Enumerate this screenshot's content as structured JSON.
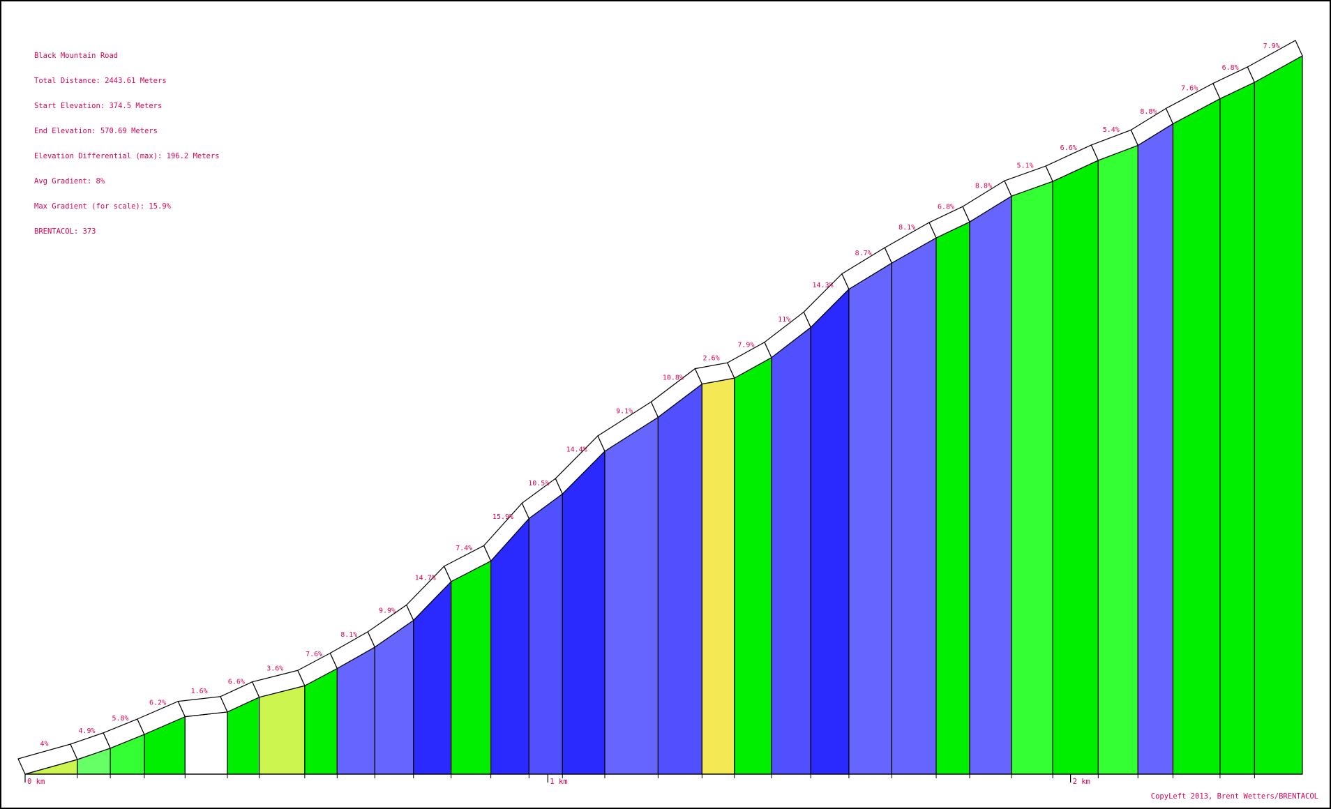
{
  "info": {
    "title": "Black Mountain Road",
    "total_distance": "Total Distance: 2443.61 Meters",
    "start_elevation": "Start Elevation: 374.5 Meters",
    "end_elevation": "End Elevation: 570.69 Meters",
    "elevation_diff": "Elevation Differential (max): 196.2 Meters",
    "avg_gradient": "Avg Gradient: 8%",
    "max_gradient": "Max Gradient (for scale): 15.9%",
    "brentacol": "BRENTACOL: 373"
  },
  "credit": "CopyLeft 2013, Brent Wetters/BRENTACOL",
  "colors": {
    "label": "#e00055",
    "outline": "#000000"
  },
  "chart_data": {
    "type": "area",
    "title": "Black Mountain Road",
    "xlabel": "",
    "ylabel": "",
    "x_unit": "km",
    "xlim": [
      0,
      2.4436
    ],
    "ylim": [
      374.5,
      570.69
    ],
    "x_tick_labels": [
      {
        "value": 0,
        "label": "0 km"
      },
      {
        "value": 1,
        "label": "1 km"
      },
      {
        "value": 2,
        "label": "2 km"
      }
    ],
    "segments": [
      {
        "x0": 0.0,
        "x1": 0.1,
        "gradient_label": "4%",
        "grade": 4.0,
        "color": "#ccf550"
      },
      {
        "x0": 0.1,
        "x1": 0.163,
        "gradient_label": "4.9%",
        "grade": 4.9,
        "color": "#66ff66"
      },
      {
        "x0": 0.163,
        "x1": 0.228,
        "gradient_label": "5.8%",
        "grade": 5.8,
        "color": "#33ff33"
      },
      {
        "x0": 0.228,
        "x1": 0.306,
        "gradient_label": "6.2%",
        "grade": 6.2,
        "color": "#00ee00"
      },
      {
        "x0": 0.306,
        "x1": 0.387,
        "gradient_label": "1.6%",
        "grade": 1.6,
        "color": "#ffffff"
      },
      {
        "x0": 0.387,
        "x1": 0.448,
        "gradient_label": "6.6%",
        "grade": 6.6,
        "color": "#00ee00"
      },
      {
        "x0": 0.448,
        "x1": 0.535,
        "gradient_label": "3.6%",
        "grade": 3.6,
        "color": "#ccf550"
      },
      {
        "x0": 0.535,
        "x1": 0.597,
        "gradient_label": "7.6%",
        "grade": 7.6,
        "color": "#00ee00"
      },
      {
        "x0": 0.597,
        "x1": 0.669,
        "gradient_label": "8.1%",
        "grade": 8.1,
        "color": "#6666ff"
      },
      {
        "x0": 0.669,
        "x1": 0.743,
        "gradient_label": "9.9%",
        "grade": 9.9,
        "color": "#6666ff"
      },
      {
        "x0": 0.743,
        "x1": 0.815,
        "gradient_label": "14.7%",
        "grade": 14.7,
        "color": "#2a2aff"
      },
      {
        "x0": 0.815,
        "x1": 0.891,
        "gradient_label": "7.4%",
        "grade": 7.4,
        "color": "#00ee00"
      },
      {
        "x0": 0.891,
        "x1": 0.964,
        "gradient_label": "15.9%",
        "grade": 15.9,
        "color": "#2a2aff"
      },
      {
        "x0": 0.964,
        "x1": 1.028,
        "gradient_label": "10.5%",
        "grade": 10.5,
        "color": "#5050ff"
      },
      {
        "x0": 1.028,
        "x1": 1.109,
        "gradient_label": "14.4%",
        "grade": 14.4,
        "color": "#2a2aff"
      },
      {
        "x0": 1.109,
        "x1": 1.211,
        "gradient_label": "9.1%",
        "grade": 9.1,
        "color": "#6666ff"
      },
      {
        "x0": 1.211,
        "x1": 1.295,
        "gradient_label": "10.8%",
        "grade": 10.8,
        "color": "#5050ff"
      },
      {
        "x0": 1.295,
        "x1": 1.357,
        "gradient_label": "2.6%",
        "grade": 2.6,
        "color": "#f5e855"
      },
      {
        "x0": 1.357,
        "x1": 1.428,
        "gradient_label": "7.9%",
        "grade": 7.9,
        "color": "#00ee00"
      },
      {
        "x0": 1.428,
        "x1": 1.503,
        "gradient_label": "11%",
        "grade": 11.0,
        "color": "#5050ff"
      },
      {
        "x0": 1.503,
        "x1": 1.576,
        "gradient_label": "14.3%",
        "grade": 14.3,
        "color": "#2a2aff"
      },
      {
        "x0": 1.576,
        "x1": 1.658,
        "gradient_label": "8.7%",
        "grade": 8.7,
        "color": "#6666ff"
      },
      {
        "x0": 1.658,
        "x1": 1.743,
        "gradient_label": "8.1%",
        "grade": 8.1,
        "color": "#6666ff"
      },
      {
        "x0": 1.743,
        "x1": 1.807,
        "gradient_label": "6.8%",
        "grade": 6.8,
        "color": "#00ee00"
      },
      {
        "x0": 1.807,
        "x1": 1.887,
        "gradient_label": "8.8%",
        "grade": 8.8,
        "color": "#6666ff"
      },
      {
        "x0": 1.887,
        "x1": 1.966,
        "gradient_label": "5.1%",
        "grade": 5.1,
        "color": "#33ff33"
      },
      {
        "x0": 1.966,
        "x1": 2.053,
        "gradient_label": "6.6%",
        "grade": 6.6,
        "color": "#00ee00"
      },
      {
        "x0": 2.053,
        "x1": 2.129,
        "gradient_label": "5.4%",
        "grade": 5.4,
        "color": "#33ff33"
      },
      {
        "x0": 2.129,
        "x1": 2.196,
        "gradient_label": "8.8%",
        "grade": 8.8,
        "color": "#6666ff"
      },
      {
        "x0": 2.196,
        "x1": 2.286,
        "gradient_label": "7.6%",
        "grade": 7.6,
        "color": "#00ee00"
      },
      {
        "x0": 2.286,
        "x1": 2.352,
        "gradient_label": "6.8%",
        "grade": 6.8,
        "color": "#00ee00"
      },
      {
        "x0": 2.352,
        "x1": 2.4436,
        "gradient_label": "7.9%",
        "grade": 7.9,
        "color": "#00ee00"
      }
    ]
  }
}
